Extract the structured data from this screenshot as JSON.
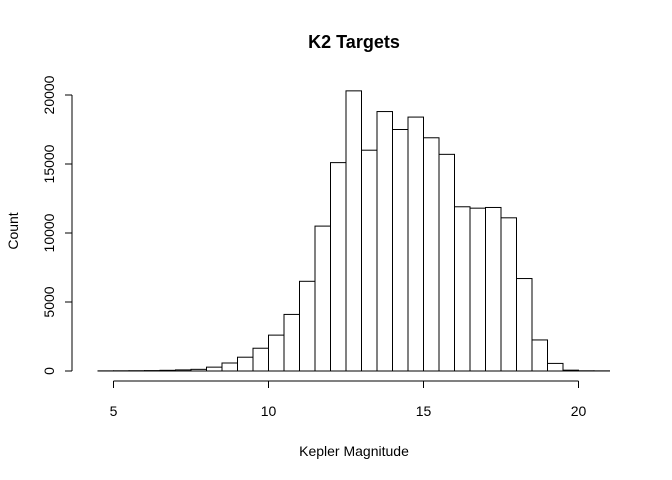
{
  "chart_data": {
    "type": "bar",
    "title": "K2 Targets",
    "xlabel": "Kepler Magnitude",
    "ylabel": "Count",
    "bin_width": 0.5,
    "xlim": [
      4.5,
      21
    ],
    "ylim": [
      0,
      21000
    ],
    "x_ticks": [
      5,
      10,
      15,
      20
    ],
    "y_ticks": [
      0,
      5000,
      10000,
      15000,
      20000
    ],
    "grid": false,
    "legend": "none",
    "bins": [
      {
        "start": 4.5,
        "value": 10
      },
      {
        "start": 5.0,
        "value": 15
      },
      {
        "start": 5.5,
        "value": 20
      },
      {
        "start": 6.0,
        "value": 30
      },
      {
        "start": 6.5,
        "value": 50
      },
      {
        "start": 7.0,
        "value": 80
      },
      {
        "start": 7.5,
        "value": 120
      },
      {
        "start": 8.0,
        "value": 280
      },
      {
        "start": 8.5,
        "value": 580
      },
      {
        "start": 9.0,
        "value": 1000
      },
      {
        "start": 9.5,
        "value": 1650
      },
      {
        "start": 10.0,
        "value": 2600
      },
      {
        "start": 10.5,
        "value": 4100
      },
      {
        "start": 11.0,
        "value": 6500
      },
      {
        "start": 11.5,
        "value": 10500
      },
      {
        "start": 12.0,
        "value": 15100
      },
      {
        "start": 12.5,
        "value": 20300
      },
      {
        "start": 13.0,
        "value": 16000
      },
      {
        "start": 13.5,
        "value": 18800
      },
      {
        "start": 14.0,
        "value": 17500
      },
      {
        "start": 14.5,
        "value": 18400
      },
      {
        "start": 15.0,
        "value": 16900
      },
      {
        "start": 15.5,
        "value": 15700
      },
      {
        "start": 16.0,
        "value": 11900
      },
      {
        "start": 16.5,
        "value": 11800
      },
      {
        "start": 17.0,
        "value": 11850
      },
      {
        "start": 17.5,
        "value": 11100
      },
      {
        "start": 18.0,
        "value": 6700
      },
      {
        "start": 18.5,
        "value": 2250
      },
      {
        "start": 19.0,
        "value": 550
      },
      {
        "start": 19.5,
        "value": 60
      },
      {
        "start": 20.0,
        "value": 15
      },
      {
        "start": 20.5,
        "value": 10
      }
    ]
  }
}
